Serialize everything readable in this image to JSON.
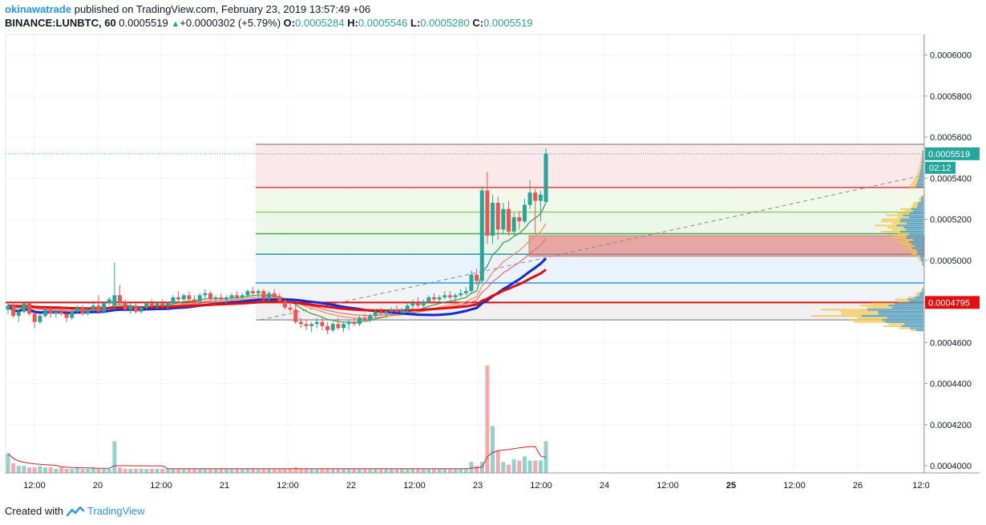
{
  "header": {
    "author": "okinawatrade",
    "published_text": "published on TradingView.com, February 23, 2019 13:57:49 +06",
    "symbol": "BINANCE:LUNBTC, 60",
    "last": "0.0005519",
    "change": "+0.0000302 (+5.79%)",
    "o_label": "O:",
    "o_value": "0.0005284",
    "h_label": "H:",
    "h_value": "0.0005546",
    "l_label": "L:",
    "l_value": "0.0005280",
    "c_label": "C:",
    "c_value": "0.0005519"
  },
  "footer": {
    "created_with": "Created with",
    "brand": "TradingView"
  },
  "price_badges": {
    "last": "0.0005519",
    "countdown": "02:12",
    "level": "0.0004795"
  },
  "colors": {
    "up": "#26a69a",
    "down": "#ef5350",
    "sma_slow": "#0d2bd4",
    "ema_red": "#e01010",
    "fib_line": "#e53935"
  },
  "chart_data": {
    "type": "candlestick",
    "symbol": "BINANCE:LUNBTC",
    "interval": "60",
    "y_ticks": [
      "0.0004000",
      "0.0004200",
      "0.0004400",
      "0.0004600",
      "0.0004800",
      "0.0005000",
      "0.0005200",
      "0.0005400",
      "0.0005600",
      "0.0005800",
      "0.0006000"
    ],
    "ylim": [
      0.0003965,
      0.00061
    ],
    "x_ticks": [
      "12:00",
      "20",
      "12:00",
      "21",
      "12:00",
      "22",
      "12:00",
      "23",
      "12:00",
      "24",
      "12:00",
      "25",
      "12:00",
      "26",
      "12:0"
    ],
    "fib_levels": [
      {
        "price": 0.0005565,
        "color": "#9e9e9e"
      },
      {
        "price": 0.0005355,
        "color": "#e53935"
      },
      {
        "price": 0.0005235,
        "color": "#9ccc65"
      },
      {
        "price": 0.000513,
        "color": "#4caf50"
      },
      {
        "price": 0.000503,
        "color": "#26a69a"
      },
      {
        "price": 0.000489,
        "color": "#2196f3"
      },
      {
        "price": 0.0004795,
        "color": "#e53935"
      },
      {
        "price": 0.000471,
        "color": "#9e9e9e"
      }
    ],
    "zone": {
      "from": 0.000502,
      "to": 0.000512
    },
    "candles": [
      [
        0.000476,
        0.000479,
        0.000474,
        0.000478
      ],
      [
        0.000478,
        0.00048,
        0.000472,
        0.000473
      ],
      [
        0.000473,
        0.000476,
        0.00047,
        0.000475
      ],
      [
        0.000475,
        0.00048,
        0.000474,
        0.000479
      ],
      [
        0.000479,
        0.00048,
        0.000473,
        0.000474
      ],
      [
        0.000474,
        0.000475,
        0.000467,
        0.00047
      ],
      [
        0.00047,
        0.000474,
        0.000469,
        0.000473
      ],
      [
        0.000473,
        0.000477,
        0.000472,
        0.000476
      ],
      [
        0.000476,
        0.000477,
        0.000472,
        0.000474
      ],
      [
        0.000474,
        0.000476,
        0.000472,
        0.000475
      ],
      [
        0.000475,
        0.000477,
        0.000473,
        0.000474
      ],
      [
        0.000474,
        0.000476,
        0.00047,
        0.000472
      ],
      [
        0.000472,
        0.000476,
        0.000471,
        0.000475
      ],
      [
        0.000475,
        0.000478,
        0.000474,
        0.000477
      ],
      [
        0.000477,
        0.000478,
        0.000473,
        0.000474
      ],
      [
        0.000474,
        0.000477,
        0.000473,
        0.000476
      ],
      [
        0.000476,
        0.000479,
        0.000475,
        0.000478
      ],
      [
        0.000478,
        0.000483,
        0.000474,
        0.000475
      ],
      [
        0.000475,
        0.00048,
        0.000474,
        0.000479
      ],
      [
        0.000479,
        0.000482,
        0.000478,
        0.000481
      ],
      [
        0.000478,
        0.000499,
        0.000476,
        0.000483
      ],
      [
        0.000483,
        0.000488,
        0.000478,
        0.00048
      ],
      [
        0.00048,
        0.000481,
        0.000475,
        0.000476
      ],
      [
        0.000476,
        0.000479,
        0.000474,
        0.000478
      ],
      [
        0.000478,
        0.000479,
        0.000474,
        0.000475
      ],
      [
        0.000475,
        0.000478,
        0.000474,
        0.000477
      ],
      [
        0.000477,
        0.00048,
        0.000476,
        0.000479
      ],
      [
        0.000479,
        0.000481,
        0.000477,
        0.000478
      ],
      [
        0.000478,
        0.00048,
        0.000476,
        0.000479
      ],
      [
        0.000479,
        0.000481,
        0.000477,
        0.000478
      ],
      [
        0.000478,
        0.00048,
        0.000476,
        0.000479
      ],
      [
        0.000479,
        0.000483,
        0.000478,
        0.000482
      ],
      [
        0.000482,
        0.000485,
        0.00048,
        0.000481
      ],
      [
        0.000481,
        0.000484,
        0.000479,
        0.000483
      ],
      [
        0.000483,
        0.000485,
        0.00048,
        0.000481
      ],
      [
        0.000481,
        0.000483,
        0.000479,
        0.00048
      ],
      [
        0.00048,
        0.000484,
        0.000479,
        0.000483
      ],
      [
        0.000483,
        0.000486,
        0.000481,
        0.000484
      ],
      [
        0.000484,
        0.000485,
        0.00048,
        0.000481
      ],
      [
        0.000481,
        0.000483,
        0.000479,
        0.000482
      ],
      [
        0.000482,
        0.000484,
        0.00048,
        0.000481
      ],
      [
        0.000481,
        0.000483,
        0.000479,
        0.000482
      ],
      [
        0.000482,
        0.000484,
        0.00048,
        0.000483
      ],
      [
        0.000483,
        0.000485,
        0.000481,
        0.000482
      ],
      [
        0.000482,
        0.000484,
        0.00048,
        0.000483
      ],
      [
        0.000483,
        0.000486,
        0.000482,
        0.000485
      ],
      [
        0.000485,
        0.000487,
        0.000483,
        0.000484
      ],
      [
        0.000484,
        0.000486,
        0.000482,
        0.000485
      ],
      [
        0.000485,
        0.000486,
        0.00048,
        0.000481
      ],
      [
        0.000481,
        0.000485,
        0.00048,
        0.000484
      ],
      [
        0.000484,
        0.000486,
        0.000481,
        0.000482
      ],
      [
        0.000482,
        0.000484,
        0.000479,
        0.00048
      ],
      [
        0.00048,
        0.000482,
        0.000476,
        0.000477
      ],
      [
        0.000477,
        0.00048,
        0.000475,
        0.000476
      ],
      [
        0.000476,
        0.000479,
        0.000469,
        0.00047
      ],
      [
        0.00047,
        0.000472,
        0.000467,
        0.000469
      ],
      [
        0.000469,
        0.000471,
        0.000466,
        0.000468
      ],
      [
        0.000468,
        0.00047,
        0.000465,
        0.000469
      ],
      [
        0.000469,
        0.000472,
        0.000467,
        0.00047
      ],
      [
        0.00047,
        0.000472,
        0.000466,
        0.000468
      ],
      [
        0.000468,
        0.00047,
        0.000464,
        0.000466
      ],
      [
        0.000466,
        0.00047,
        0.000465,
        0.000469
      ],
      [
        0.000469,
        0.000472,
        0.000466,
        0.000467
      ],
      [
        0.000467,
        0.00047,
        0.000465,
        0.000469
      ],
      [
        0.000469,
        0.000471,
        0.000466,
        0.00047
      ],
      [
        0.00047,
        0.000472,
        0.000468,
        0.000469
      ],
      [
        0.000469,
        0.000473,
        0.000468,
        0.000472
      ],
      [
        0.000472,
        0.000474,
        0.00047,
        0.000471
      ],
      [
        0.000471,
        0.000474,
        0.00047,
        0.000473
      ],
      [
        0.000473,
        0.000476,
        0.000472,
        0.000475
      ],
      [
        0.000475,
        0.000477,
        0.000473,
        0.000474
      ],
      [
        0.000474,
        0.000476,
        0.000472,
        0.000475
      ],
      [
        0.000475,
        0.000477,
        0.000473,
        0.000476
      ],
      [
        0.000476,
        0.000478,
        0.000474,
        0.000475
      ],
      [
        0.000475,
        0.000477,
        0.000473,
        0.000476
      ],
      [
        0.000476,
        0.000479,
        0.000475,
        0.000478
      ],
      [
        0.000478,
        0.000481,
        0.000476,
        0.000479
      ],
      [
        0.000479,
        0.000482,
        0.000477,
        0.000478
      ],
      [
        0.000478,
        0.000481,
        0.000477,
        0.00048
      ],
      [
        0.00048,
        0.000483,
        0.000479,
        0.000482
      ],
      [
        0.000482,
        0.000484,
        0.00048,
        0.000481
      ],
      [
        0.000481,
        0.000483,
        0.000479,
        0.000482
      ],
      [
        0.000482,
        0.000485,
        0.000481,
        0.000483
      ],
      [
        0.000483,
        0.000485,
        0.000481,
        0.000482
      ],
      [
        0.000482,
        0.000484,
        0.00048,
        0.000483
      ],
      [
        0.000483,
        0.000486,
        0.000482,
        0.000484
      ],
      [
        0.000484,
        0.000487,
        0.000483,
        0.000485
      ],
      [
        0.000485,
        0.000495,
        0.000484,
        0.000493
      ],
      [
        0.000493,
        0.000496,
        0.000488,
        0.00049
      ],
      [
        0.00049,
        0.000536,
        0.000489,
        0.000534
      ],
      [
        0.000534,
        0.000543,
        0.000508,
        0.000512
      ],
      [
        0.000512,
        0.000532,
        0.000508,
        0.000528
      ],
      [
        0.000528,
        0.000531,
        0.00051,
        0.000515
      ],
      [
        0.000515,
        0.000528,
        0.000513,
        0.000525
      ],
      [
        0.000525,
        0.000529,
        0.000512,
        0.000514
      ],
      [
        0.000514,
        0.000523,
        0.000512,
        0.000521
      ],
      [
        0.000521,
        0.000524,
        0.000515,
        0.000519
      ],
      [
        0.000519,
        0.00053,
        0.000518,
        0.000527
      ],
      [
        0.000527,
        0.000539,
        0.000525,
        0.000533
      ],
      [
        0.000533,
        0.000535,
        0.000513,
        0.000529
      ],
      [
        0.000529,
        0.000534,
        0.000519,
        0.000532
      ],
      [
        0.0005284,
        0.0005546,
        0.000528,
        0.0005519
      ]
    ],
    "volume": [
      14,
      7,
      5,
      5,
      4,
      4,
      5,
      4,
      4,
      3,
      4,
      3,
      3,
      4,
      3,
      3,
      4,
      3,
      3,
      3,
      23,
      4,
      3,
      3,
      3,
      3,
      3,
      3,
      3,
      3,
      3,
      3,
      3,
      3,
      3,
      3,
      3,
      3,
      3,
      3,
      3,
      3,
      3,
      3,
      3,
      3,
      3,
      3,
      3,
      3,
      3,
      3,
      3,
      3,
      4,
      3,
      3,
      3,
      3,
      3,
      3,
      3,
      3,
      3,
      3,
      3,
      3,
      3,
      3,
      3,
      3,
      3,
      3,
      3,
      3,
      3,
      3,
      3,
      3,
      3,
      3,
      3,
      3,
      3,
      3,
      3,
      3,
      8,
      5,
      8,
      78,
      34,
      16,
      8,
      6,
      10,
      9,
      12,
      9,
      9,
      9,
      23
    ],
    "volume_up": [
      1,
      0,
      1,
      1,
      0,
      0,
      1,
      1,
      0,
      1,
      0,
      0,
      1,
      1,
      0,
      1,
      1,
      0,
      1,
      1,
      1,
      0,
      0,
      1,
      0,
      1,
      1,
      0,
      1,
      0,
      1,
      1,
      0,
      1,
      0,
      0,
      1,
      1,
      0,
      1,
      0,
      1,
      1,
      0,
      1,
      1,
      0,
      1,
      0,
      1,
      0,
      0,
      0,
      0,
      0,
      0,
      0,
      1,
      1,
      0,
      0,
      1,
      0,
      1,
      1,
      0,
      1,
      0,
      1,
      1,
      0,
      1,
      1,
      0,
      1,
      1,
      1,
      0,
      1,
      1,
      0,
      1,
      1,
      0,
      1,
      1,
      1,
      1,
      0,
      1,
      0,
      1,
      0,
      1,
      0,
      1,
      0,
      1,
      1,
      0,
      1,
      1
    ]
  }
}
